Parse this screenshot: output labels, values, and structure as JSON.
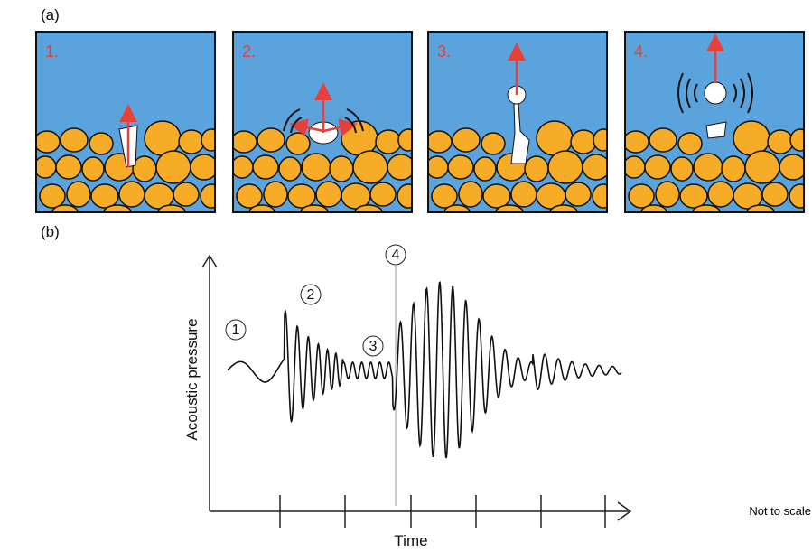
{
  "panel_a": {
    "label": "(a)",
    "steps": [
      "1.",
      "2.",
      "3.",
      "4."
    ]
  },
  "panel_b": {
    "label": "(b)",
    "stages": [
      "1",
      "2",
      "3",
      "4"
    ],
    "y_axis_label": "Acoustic pressure",
    "x_axis_label": "Time",
    "note": "Not to scale"
  }
}
